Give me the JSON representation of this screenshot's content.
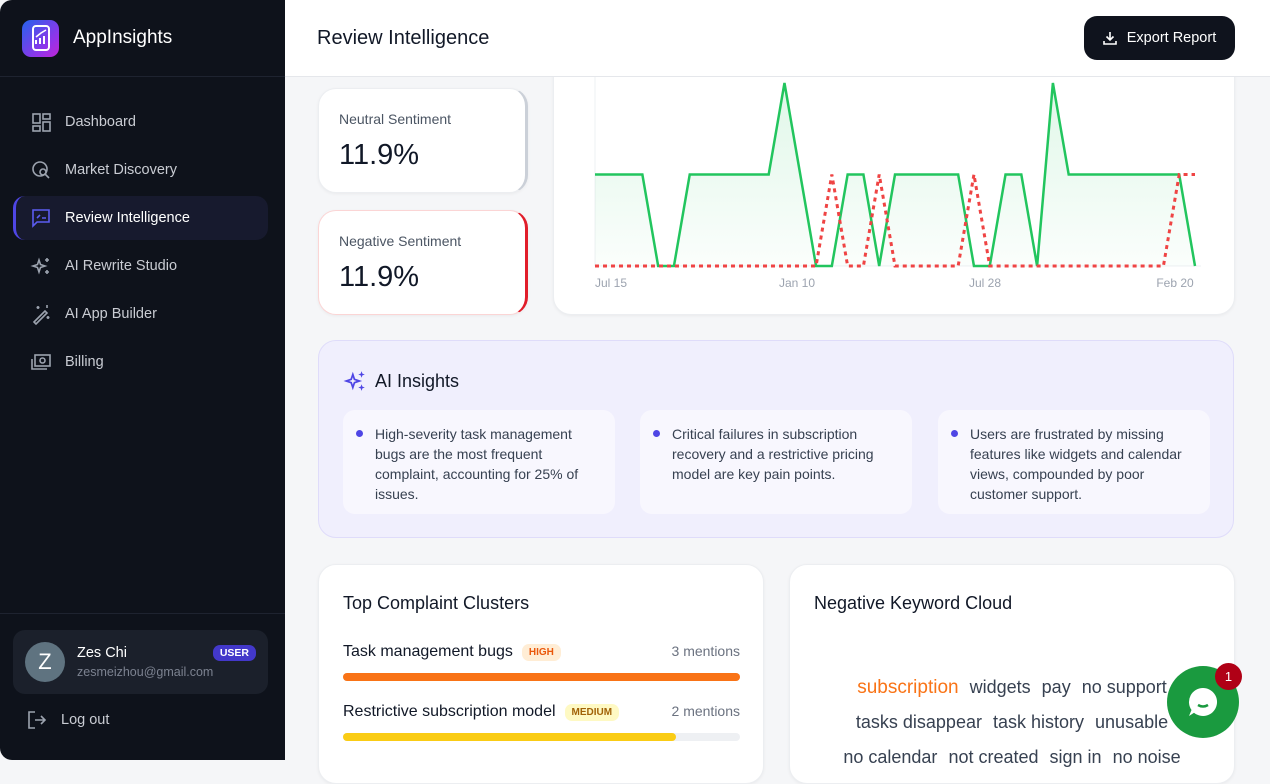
{
  "app": {
    "name": "AppInsights"
  },
  "sidebar": {
    "items": [
      {
        "label": "Dashboard",
        "icon": "grid-icon"
      },
      {
        "label": "Market Discovery",
        "icon": "globe-search-icon"
      },
      {
        "label": "Review Intelligence",
        "icon": "review-icon",
        "active": true
      },
      {
        "label": "AI Rewrite Studio",
        "icon": "sparkles-icon"
      },
      {
        "label": "AI App Builder",
        "icon": "magic-wand-icon"
      },
      {
        "label": "Billing",
        "icon": "money-icon"
      }
    ],
    "user": {
      "initial": "Z",
      "name": "Zes Chi",
      "email": "zesmeizhou@gmail.com",
      "role": "USER"
    },
    "logout_label": "Log out"
  },
  "header": {
    "title": "Review Intelligence",
    "export_label": "Export Report"
  },
  "stats": {
    "neutral": {
      "label": "Neutral Sentiment",
      "value": "11.9%"
    },
    "negative": {
      "label": "Negative Sentiment",
      "value": "11.9%"
    }
  },
  "chart_data": {
    "type": "area",
    "x_tick_labels": [
      "Jul 15",
      "Jan 10",
      "Jul 28",
      "Feb 20"
    ],
    "series": [
      {
        "color": "#22c55e",
        "style": "solid-filled",
        "values": [
          1,
          1,
          1,
          1,
          0,
          0,
          1,
          1,
          1,
          1,
          1,
          1,
          2,
          1,
          0,
          0,
          1,
          1,
          0,
          1,
          1,
          1,
          1,
          1,
          0,
          0,
          1,
          1,
          0,
          2,
          1,
          1,
          1,
          1,
          1,
          1,
          1,
          1,
          0
        ]
      },
      {
        "color": "#ef4444",
        "style": "dashed",
        "values": [
          0,
          0,
          0,
          0,
          0,
          0,
          0,
          0,
          0,
          0,
          0,
          0,
          0,
          0,
          0,
          1,
          0,
          0,
          1,
          0,
          0,
          0,
          0,
          0,
          1,
          0,
          0,
          0,
          0,
          0,
          0,
          0,
          0,
          0,
          0,
          0,
          0,
          1,
          1
        ]
      }
    ],
    "grid": false
  },
  "insights": {
    "title": "AI Insights",
    "items": [
      "High-severity task management bugs are the most frequent complaint, accounting for 25% of issues.",
      "Critical failures in subscription recovery and a restrictive pricing model are key pain points.",
      "Users are frustrated by missing features like widgets and calendar views, compounded by poor customer support."
    ]
  },
  "clusters": {
    "title": "Top Complaint Clusters",
    "items": [
      {
        "name": "Task management bugs",
        "severity": "HIGH",
        "mentions": "3 mentions",
        "fill": 1.0,
        "color": "#f97316"
      },
      {
        "name": "Restrictive subscription model",
        "severity": "MEDIUM",
        "mentions": "2 mentions",
        "fill": 0.84,
        "color": "#facc15"
      }
    ]
  },
  "keyword_cloud": {
    "title": "Negative Keyword Cloud",
    "rows": [
      [
        "subscription",
        "widgets",
        "pay",
        "no support"
      ],
      [
        "tasks disappear",
        "task history",
        "unusable"
      ],
      [
        "no calendar",
        "not created",
        "sign in",
        "no noise"
      ]
    ],
    "highlight_color": "#f97316"
  },
  "chat": {
    "badge_count": "1"
  }
}
